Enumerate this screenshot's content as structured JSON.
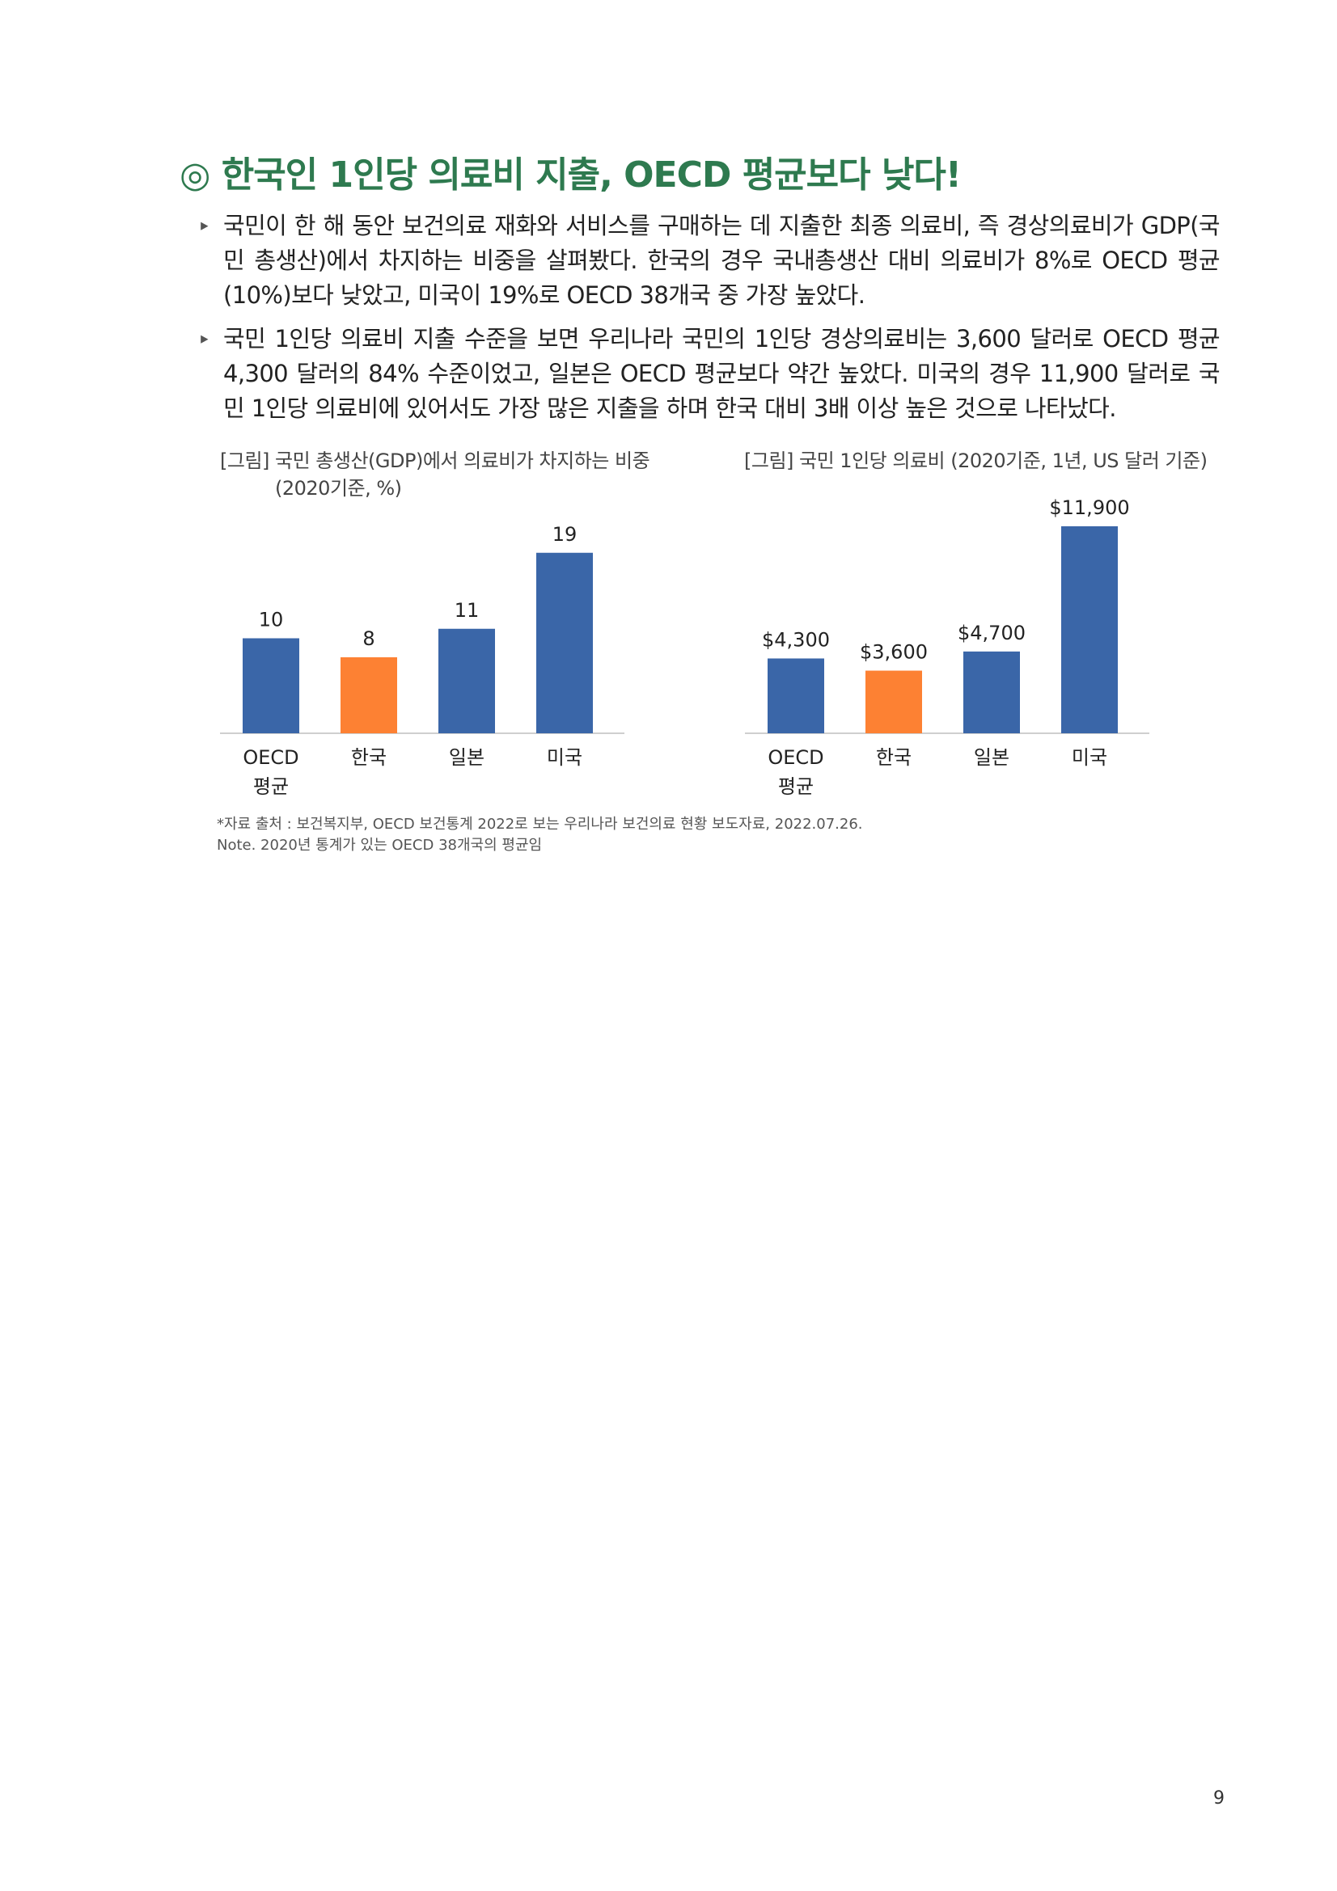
{
  "title": "◎ 한국인 1인당 의료비 지출, OECD 평균보다 낮다!",
  "bullet_symbol": "‣",
  "paragraphs": [
    "국민이 한 해 동안 보건의료 재화와 서비스를 구매하는 데 지출한 최종 의료비, 즉 경상의료비가 GDP(국민 총생산)에서 차지하는 비중을 살펴봤다. 한국의 경우 국내총생산 대비 의료비가 8%로 OECD 평균(10%)보다 낮았고, 미국이 19%로 OECD 38개국 중 가장 높았다.",
    "국민 1인당 의료비 지출 수준을 보면 우리나라 국민의 1인당 경상의료비는 3,600 달러로 OECD 평균 4,300 달러의 84% 수준이었고, 일본은 OECD 평균보다 약간 높았다. 미국의 경우 11,900 달러로 국민 1인당 의료비에 있어서도 가장 많은 지출을 하며 한국 대비 3배 이상 높은 것으로 나타났다."
  ],
  "figure1": {
    "title_line1": "[그림] 국민 총생산(GDP)에서 의료비가 차지하는 비중",
    "title_line2": "(2020기준, %)"
  },
  "figure2": {
    "title_line1": "[그림] 국민 1인당 의료비 (2020기준, 1년, US 달러 기준)"
  },
  "chart_data": [
    {
      "type": "bar",
      "title": "[그림] 국민 총생산(GDP)에서 의료비가 차지하는 비중 (2020기준, %)",
      "categories": [
        [
          "OECD",
          "평균"
        ],
        [
          "한국"
        ],
        [
          "일본"
        ],
        [
          "미국"
        ]
      ],
      "values": [
        10,
        8,
        11,
        19
      ],
      "labels": [
        "10",
        "8",
        "11",
        "19"
      ],
      "colors": [
        "#3a66a8",
        "#fd8133",
        "#3a66a8",
        "#3a66a8"
      ],
      "ylim": [
        0,
        20
      ],
      "grid": false,
      "legend": "none"
    },
    {
      "type": "bar",
      "title": "[그림] 국민 1인당 의료비 (2020기준, 1년, US 달러 기준)",
      "categories": [
        [
          "OECD",
          "평균"
        ],
        [
          "한국"
        ],
        [
          "일본"
        ],
        [
          "미국"
        ]
      ],
      "values": [
        4300,
        3600,
        4700,
        11900
      ],
      "labels": [
        "$4,300",
        "$3,600",
        "$4,700",
        "$11,900"
      ],
      "colors": [
        "#3a66a8",
        "#fd8133",
        "#3a66a8",
        "#3a66a8"
      ],
      "ylim": [
        0,
        12500
      ],
      "grid": false,
      "legend": "none"
    }
  ],
  "source_line1": "*자료 출처 : 보건복지부, OECD 보건통계 2022로 보는 우리나라 보건의료 현황 보도자료, 2022.07.26.",
  "source_line2": "Note. 2020년 통계가 있는 OECD 38개국의 평균임",
  "page_number": "9"
}
